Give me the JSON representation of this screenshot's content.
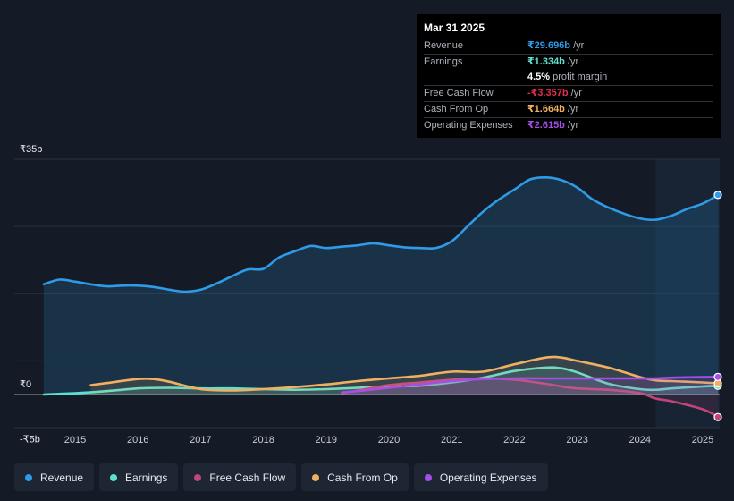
{
  "tooltip": {
    "date": "Mar 31 2025",
    "rows": [
      {
        "label": "Revenue",
        "value": "₹29.696b",
        "suffix": " /yr",
        "color": "#2f9ae6"
      },
      {
        "label": "Earnings",
        "value": "₹1.334b",
        "suffix": " /yr",
        "color": "#5fe0cf"
      },
      {
        "label": "",
        "value": "4.5%",
        "suffix": " profit margin",
        "color": "#ffffff"
      },
      {
        "label": "Free Cash Flow",
        "value": "-₹3.357b",
        "suffix": " /yr",
        "color": "#e0304e"
      },
      {
        "label": "Cash From Op",
        "value": "₹1.664b",
        "suffix": " /yr",
        "color": "#f0b060"
      },
      {
        "label": "Operating Expenses",
        "value": "₹2.615b",
        "suffix": " /yr",
        "color": "#a54ee8"
      }
    ]
  },
  "legend": [
    {
      "label": "Revenue",
      "color": "#2f9ae6"
    },
    {
      "label": "Earnings",
      "color": "#5fe0cf"
    },
    {
      "label": "Free Cash Flow",
      "color": "#c0457a"
    },
    {
      "label": "Cash From Op",
      "color": "#f0b060"
    },
    {
      "label": "Operating Expenses",
      "color": "#a54ee8"
    }
  ],
  "chart_data": {
    "type": "line",
    "title": "",
    "ylabel": "",
    "xlabel": "",
    "ylim": [
      -5,
      35
    ],
    "y_tick_labels": [
      "₹35b",
      "₹0",
      "-₹5b"
    ],
    "y_tick_values": [
      35,
      0,
      -5
    ],
    "x_tick_labels": [
      "2015",
      "2016",
      "2017",
      "2018",
      "2019",
      "2020",
      "2021",
      "2022",
      "2023",
      "2024",
      "2025"
    ],
    "x_tick_values": [
      2015,
      2016,
      2017,
      2018,
      2019,
      2020,
      2021,
      2022,
      2023,
      2024,
      2025
    ],
    "highlight_from": 2024.25,
    "series": [
      {
        "name": "Revenue",
        "color": "#2f9ae6",
        "fill": true,
        "x": [
          2014.5,
          2014.75,
          2015.0,
          2015.25,
          2015.5,
          2015.75,
          2016.0,
          2016.25,
          2016.5,
          2016.75,
          2017.0,
          2017.25,
          2017.5,
          2017.75,
          2018.0,
          2018.25,
          2018.5,
          2018.75,
          2019.0,
          2019.25,
          2019.5,
          2019.75,
          2020.0,
          2020.25,
          2020.5,
          2020.75,
          2021.0,
          2021.25,
          2021.5,
          2021.75,
          2022.0,
          2022.25,
          2022.5,
          2022.75,
          2023.0,
          2023.25,
          2023.5,
          2023.75,
          2024.0,
          2024.25,
          2024.5,
          2024.75,
          2025.0,
          2025.25
        ],
        "values": [
          16.4,
          17.1,
          16.8,
          16.4,
          16.1,
          16.2,
          16.2,
          16.0,
          15.6,
          15.3,
          15.6,
          16.5,
          17.6,
          18.6,
          18.7,
          20.4,
          21.3,
          22.1,
          21.8,
          22.0,
          22.2,
          22.5,
          22.2,
          21.9,
          21.8,
          21.8,
          22.8,
          25.0,
          27.2,
          29.0,
          30.5,
          32.0,
          32.3,
          31.9,
          30.8,
          29.0,
          27.8,
          26.9,
          26.2,
          26.0,
          26.6,
          27.6,
          28.4,
          29.7
        ]
      },
      {
        "name": "Earnings",
        "color": "#5fe0cf",
        "fill": true,
        "x": [
          2014.5,
          2015.0,
          2015.5,
          2016.0,
          2016.5,
          2017.0,
          2017.5,
          2018.0,
          2018.5,
          2019.0,
          2019.5,
          2020.0,
          2020.5,
          2021.0,
          2021.5,
          2022.0,
          2022.5,
          2022.75,
          2023.0,
          2023.5,
          2024.0,
          2024.25,
          2024.5,
          2025.0,
          2025.25
        ],
        "values": [
          0.0,
          0.2,
          0.5,
          0.9,
          1.0,
          0.9,
          0.9,
          0.8,
          0.7,
          0.8,
          1.0,
          1.2,
          1.3,
          1.8,
          2.5,
          3.5,
          4.0,
          3.9,
          3.3,
          1.6,
          0.8,
          0.7,
          0.9,
          1.2,
          1.3
        ]
      },
      {
        "name": "Free Cash Flow",
        "color": "#c0457a",
        "fill": true,
        "x": [
          2019.25,
          2019.5,
          2020.0,
          2020.5,
          2021.0,
          2021.5,
          2022.0,
          2022.5,
          2022.75,
          2023.0,
          2023.5,
          2024.0,
          2024.25,
          2024.5,
          2025.0,
          2025.25
        ],
        "values": [
          0.2,
          0.6,
          1.4,
          1.8,
          2.2,
          2.4,
          2.2,
          1.6,
          1.2,
          0.9,
          0.7,
          0.2,
          -0.6,
          -1.0,
          -2.2,
          -3.357
        ]
      },
      {
        "name": "Cash From Op",
        "color": "#f0b060",
        "fill": true,
        "x": [
          2015.25,
          2015.5,
          2016.0,
          2016.25,
          2016.5,
          2017.0,
          2017.5,
          2018.0,
          2018.5,
          2019.0,
          2019.5,
          2020.0,
          2020.5,
          2021.0,
          2021.5,
          2022.0,
          2022.5,
          2022.75,
          2023.0,
          2023.5,
          2024.0,
          2024.25,
          2024.5,
          2025.0,
          2025.25
        ],
        "values": [
          1.4,
          1.7,
          2.3,
          2.3,
          1.9,
          0.8,
          0.6,
          0.8,
          1.1,
          1.5,
          2.0,
          2.4,
          2.8,
          3.4,
          3.4,
          4.5,
          5.5,
          5.5,
          5.0,
          4.0,
          2.6,
          2.1,
          2.0,
          1.8,
          1.664
        ]
      },
      {
        "name": "Operating Expenses",
        "color": "#a54ee8",
        "fill": true,
        "x": [
          2019.25,
          2019.5,
          2020.0,
          2020.5,
          2021.0,
          2021.5,
          2022.0,
          2022.5,
          2023.0,
          2023.5,
          2024.0,
          2024.25,
          2024.5,
          2025.0,
          2025.25
        ],
        "values": [
          0.3,
          0.5,
          1.0,
          1.5,
          2.0,
          2.3,
          2.4,
          2.4,
          2.4,
          2.4,
          2.4,
          2.4,
          2.5,
          2.6,
          2.615
        ]
      }
    ]
  }
}
